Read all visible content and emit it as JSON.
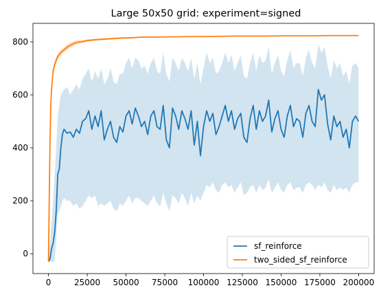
{
  "chart_data": {
    "type": "line",
    "title": "Large 50x50 grid: experiment=signed",
    "xlabel": "",
    "ylabel": "",
    "xlim": [
      -10000,
      210000
    ],
    "ylim": [
      -75,
      870
    ],
    "x_ticks": [
      0,
      25000,
      50000,
      75000,
      100000,
      125000,
      150000,
      175000,
      200000
    ],
    "y_ticks": [
      0,
      200,
      400,
      600,
      800
    ],
    "grid": false,
    "legend": "lower-right",
    "series": [
      {
        "name": "sf_reinforce",
        "color": "#1f77b4",
        "band_color": "#1f77b4",
        "x": [
          0,
          1000,
          2000,
          3000,
          4000,
          5000,
          6000,
          7000,
          8000,
          9000,
          10000,
          12000,
          14000,
          16000,
          18000,
          20000,
          22000,
          24000,
          26000,
          28000,
          30000,
          32000,
          34000,
          36000,
          38000,
          40000,
          42000,
          44000,
          46000,
          48000,
          50000,
          52000,
          54000,
          56000,
          58000,
          60000,
          62000,
          64000,
          66000,
          68000,
          70000,
          72000,
          74000,
          76000,
          78000,
          80000,
          82000,
          84000,
          86000,
          88000,
          90000,
          92000,
          94000,
          96000,
          98000,
          100000,
          102000,
          104000,
          106000,
          108000,
          110000,
          112000,
          114000,
          116000,
          118000,
          120000,
          122000,
          124000,
          126000,
          128000,
          130000,
          132000,
          134000,
          136000,
          138000,
          140000,
          142000,
          144000,
          146000,
          148000,
          150000,
          152000,
          154000,
          156000,
          158000,
          160000,
          162000,
          164000,
          166000,
          168000,
          170000,
          172000,
          174000,
          176000,
          178000,
          180000,
          182000,
          184000,
          186000,
          188000,
          190000,
          192000,
          194000,
          196000,
          198000,
          200000
        ],
        "values": [
          -30,
          -20,
          20,
          40,
          80,
          160,
          300,
          320,
          400,
          450,
          470,
          455,
          460,
          440,
          470,
          455,
          500,
          510,
          540,
          470,
          520,
          480,
          540,
          430,
          470,
          500,
          440,
          420,
          480,
          460,
          520,
          540,
          490,
          550,
          520,
          480,
          500,
          450,
          520,
          540,
          480,
          470,
          560,
          430,
          400,
          550,
          520,
          470,
          540,
          510,
          470,
          540,
          410,
          500,
          370,
          480,
          540,
          500,
          530,
          450,
          480,
          520,
          560,
          500,
          540,
          470,
          510,
          530,
          440,
          420,
          510,
          560,
          470,
          540,
          500,
          520,
          580,
          460,
          510,
          540,
          470,
          440,
          520,
          560,
          480,
          510,
          500,
          440,
          530,
          560,
          500,
          480,
          620,
          580,
          600,
          490,
          430,
          520,
          480,
          500,
          440,
          470,
          400,
          500,
          520,
          500
        ],
        "lower": [
          -30,
          -30,
          -30,
          -30,
          -30,
          60,
          150,
          160,
          180,
          200,
          210,
          200,
          200,
          180,
          190,
          170,
          180,
          200,
          220,
          210,
          220,
          180,
          190,
          180,
          190,
          200,
          170,
          160,
          190,
          180,
          200,
          220,
          190,
          210,
          210,
          200,
          190,
          180,
          200,
          220,
          190,
          180,
          230,
          190,
          160,
          220,
          210,
          190,
          230,
          210,
          180,
          230,
          190,
          220,
          200,
          230,
          260,
          250,
          270,
          240,
          230,
          260,
          270,
          250,
          260,
          230,
          250,
          270,
          220,
          230,
          250,
          260,
          230,
          260,
          240,
          250,
          280,
          230,
          250,
          270,
          240,
          230,
          260,
          270,
          240,
          250,
          250,
          230,
          260,
          270,
          260,
          240,
          260,
          250,
          270,
          240,
          230,
          260,
          240,
          250,
          240,
          250,
          230,
          260,
          270,
          270
        ],
        "upper": [
          -10,
          40,
          120,
          200,
          300,
          400,
          520,
          560,
          600,
          610,
          620,
          630,
          600,
          620,
          640,
          620,
          660,
          680,
          700,
          650,
          690,
          660,
          700,
          640,
          660,
          700,
          650,
          640,
          680,
          680,
          720,
          740,
          700,
          740,
          730,
          700,
          710,
          680,
          720,
          740,
          690,
          680,
          760,
          680,
          650,
          740,
          720,
          690,
          740,
          720,
          690,
          740,
          660,
          720,
          640,
          700,
          760,
          720,
          740,
          680,
          690,
          720,
          760,
          720,
          750,
          690,
          720,
          750,
          670,
          660,
          720,
          760,
          690,
          750,
          720,
          730,
          780,
          680,
          720,
          750,
          690,
          670,
          730,
          770,
          700,
          720,
          720,
          670,
          740,
          770,
          720,
          700,
          790,
          760,
          780,
          710,
          660,
          730,
          700,
          720,
          670,
          690,
          640,
          710,
          720,
          700
        ]
      },
      {
        "name": "two_sided_sf_reinforce",
        "color": "#ff7f0e",
        "band_color": "#ff7f0e",
        "x": [
          0,
          500,
          1000,
          1500,
          2000,
          3000,
          4000,
          5000,
          6000,
          8000,
          10000,
          12000,
          15000,
          18000,
          21000,
          25000,
          30000,
          35000,
          40000,
          45000,
          50000,
          55000,
          60000,
          70000,
          80000,
          90000,
          100000,
          110000,
          120000,
          130000,
          140000,
          150000,
          160000,
          170000,
          180000,
          190000,
          200000
        ],
        "values": [
          -30,
          200,
          420,
          560,
          620,
          690,
          715,
          730,
          745,
          760,
          770,
          780,
          790,
          798,
          800,
          805,
          808,
          810,
          812,
          814,
          815,
          816,
          818,
          818,
          819,
          820,
          820,
          821,
          822,
          822,
          822,
          823,
          823,
          823,
          824,
          824,
          824
        ],
        "lower": [
          -30,
          180,
          400,
          540,
          600,
          675,
          700,
          718,
          733,
          748,
          760,
          770,
          780,
          790,
          794,
          800,
          804,
          806,
          808,
          811,
          812,
          814,
          816,
          816,
          818,
          819,
          819,
          820,
          821,
          821,
          821,
          822,
          822,
          822,
          823,
          823,
          823
        ],
        "upper": [
          -30,
          220,
          440,
          580,
          640,
          705,
          730,
          742,
          757,
          772,
          780,
          790,
          800,
          806,
          806,
          810,
          812,
          814,
          816,
          817,
          818,
          818,
          820,
          820,
          820,
          821,
          821,
          822,
          823,
          823,
          823,
          824,
          824,
          824,
          825,
          825,
          825
        ]
      }
    ]
  }
}
